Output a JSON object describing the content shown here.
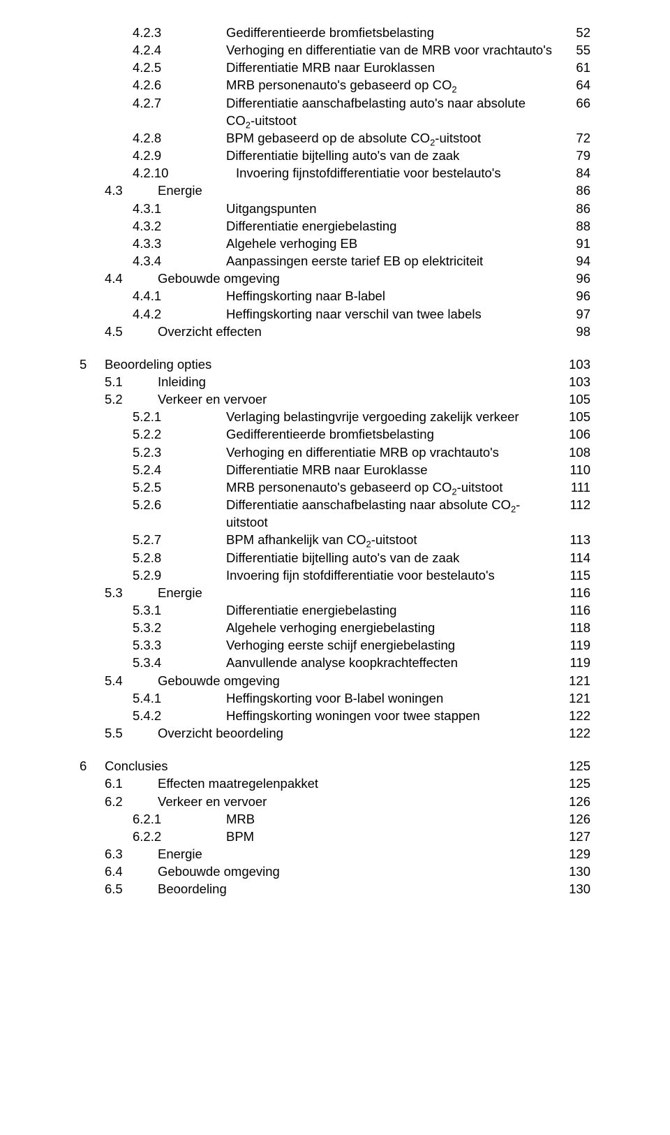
{
  "toc": [
    {
      "lvl": 2,
      "num": "4.2.3",
      "title": "Gedifferentieerde bromfietsbelasting",
      "page": "52"
    },
    {
      "lvl": 2,
      "num": "4.2.4",
      "title": "Verhoging en differentiatie van de MRB voor vrachtauto's",
      "page": "55"
    },
    {
      "lvl": 2,
      "num": "4.2.5",
      "title": "Differentiatie MRB naar Euroklassen",
      "page": "61"
    },
    {
      "lvl": 2,
      "num": "4.2.6",
      "title": "MRB personenauto's gebaseerd op CO₂",
      "page": "64"
    },
    {
      "lvl": 2,
      "num": "4.2.7",
      "title": "Differentiatie aanschafbelasting auto's naar absolute CO₂-uitstoot",
      "page": "66"
    },
    {
      "lvl": 2,
      "num": "4.2.8",
      "title": "BPM gebaseerd op de absolute CO₂-uitstoot",
      "page": "72"
    },
    {
      "lvl": 2,
      "num": "4.2.9",
      "title": "Differentiatie bijtelling auto's van de zaak",
      "page": "79"
    },
    {
      "lvl": 2,
      "num": "4.2.10",
      "title": "Invoering fijnstofdifferentiatie voor bestelauto's",
      "page": "84",
      "wide": true
    },
    {
      "lvl": 1,
      "num": "4.3",
      "title": "Energie",
      "page": "86"
    },
    {
      "lvl": 2,
      "num": "4.3.1",
      "title": "Uitgangspunten",
      "page": "86"
    },
    {
      "lvl": 2,
      "num": "4.3.2",
      "title": "Differentiatie energiebelasting",
      "page": "88"
    },
    {
      "lvl": 2,
      "num": "4.3.3",
      "title": "Algehele verhoging EB",
      "page": "91"
    },
    {
      "lvl": 2,
      "num": "4.3.4",
      "title": "Aanpassingen eerste tarief EB op elektriciteit",
      "page": "94"
    },
    {
      "lvl": 1,
      "num": "4.4",
      "title": "Gebouwde omgeving",
      "page": "96"
    },
    {
      "lvl": 2,
      "num": "4.4.1",
      "title": "Heffingskorting naar B-label",
      "page": "96"
    },
    {
      "lvl": 2,
      "num": "4.4.2",
      "title": "Heffingskorting naar verschil van twee labels",
      "page": "97"
    },
    {
      "lvl": 1,
      "num": "4.5",
      "title": "Overzicht effecten",
      "page": "98"
    },
    {
      "gap": true
    },
    {
      "lvl": 0,
      "num": "5",
      "title": "Beoordeling opties",
      "page": "103"
    },
    {
      "lvl": 1,
      "num": "5.1",
      "title": "Inleiding",
      "page": "103"
    },
    {
      "lvl": 1,
      "num": "5.2",
      "title": "Verkeer en vervoer",
      "page": "105"
    },
    {
      "lvl": 2,
      "num": "5.2.1",
      "title": "Verlaging belastingvrije vergoeding zakelijk verkeer",
      "page": "105"
    },
    {
      "lvl": 2,
      "num": "5.2.2",
      "title": "Gedifferentieerde bromfietsbelasting",
      "page": "106"
    },
    {
      "lvl": 2,
      "num": "5.2.3",
      "title": "Verhoging en differentiatie MRB op vrachtauto's",
      "page": "108"
    },
    {
      "lvl": 2,
      "num": "5.2.4",
      "title": "Differentiatie MRB naar Euroklasse",
      "page": "110"
    },
    {
      "lvl": 2,
      "num": "5.2.5",
      "title": "MRB personenauto's gebaseerd op CO₂-uitstoot",
      "page": "111"
    },
    {
      "lvl": 2,
      "num": "5.2.6",
      "title": "Differentiatie aanschafbelasting naar absolute CO₂-uitstoot",
      "page": "112"
    },
    {
      "lvl": 2,
      "num": "5.2.7",
      "title": "BPM afhankelijk van CO₂-uitstoot",
      "page": "113"
    },
    {
      "lvl": 2,
      "num": "5.2.8",
      "title": "Differentiatie bijtelling auto's van de zaak",
      "page": "114"
    },
    {
      "lvl": 2,
      "num": "5.2.9",
      "title": "Invoering fijn stofdifferentiatie voor bestelauto's",
      "page": "115"
    },
    {
      "lvl": 1,
      "num": "5.3",
      "title": "Energie",
      "page": "116"
    },
    {
      "lvl": 2,
      "num": "5.3.1",
      "title": "Differentiatie energiebelasting",
      "page": "116"
    },
    {
      "lvl": 2,
      "num": "5.3.2",
      "title": "Algehele verhoging energiebelasting",
      "page": "118"
    },
    {
      "lvl": 2,
      "num": "5.3.3",
      "title": "Verhoging eerste schijf energiebelasting",
      "page": "119"
    },
    {
      "lvl": 2,
      "num": "5.3.4",
      "title": "Aanvullende analyse koopkrachteffecten",
      "page": "119"
    },
    {
      "lvl": 1,
      "num": "5.4",
      "title": "Gebouwde omgeving",
      "page": "121"
    },
    {
      "lvl": 2,
      "num": "5.4.1",
      "title": "Heffingskorting voor B-label woningen",
      "page": "121"
    },
    {
      "lvl": 2,
      "num": "5.4.2",
      "title": "Heffingskorting woningen voor twee stappen",
      "page": "122"
    },
    {
      "lvl": 1,
      "num": "5.5",
      "title": "Overzicht beoordeling",
      "page": "122"
    },
    {
      "gap": true
    },
    {
      "lvl": 0,
      "num": "6",
      "title": "Conclusies",
      "page": "125"
    },
    {
      "lvl": 1,
      "num": "6.1",
      "title": "Effecten maatregelenpakket",
      "page": "125"
    },
    {
      "lvl": 1,
      "num": "6.2",
      "title": "Verkeer en vervoer",
      "page": "126"
    },
    {
      "lvl": 2,
      "num": "6.2.1",
      "title": "MRB",
      "page": "126"
    },
    {
      "lvl": 2,
      "num": "6.2.2",
      "title": "BPM",
      "page": "127"
    },
    {
      "lvl": 1,
      "num": "6.3",
      "title": "Energie",
      "page": "129"
    },
    {
      "lvl": 1,
      "num": "6.4",
      "title": "Gebouwde omgeving",
      "page": "130"
    },
    {
      "lvl": 1,
      "num": "6.5",
      "title": "Beoordeling",
      "page": "130"
    }
  ]
}
